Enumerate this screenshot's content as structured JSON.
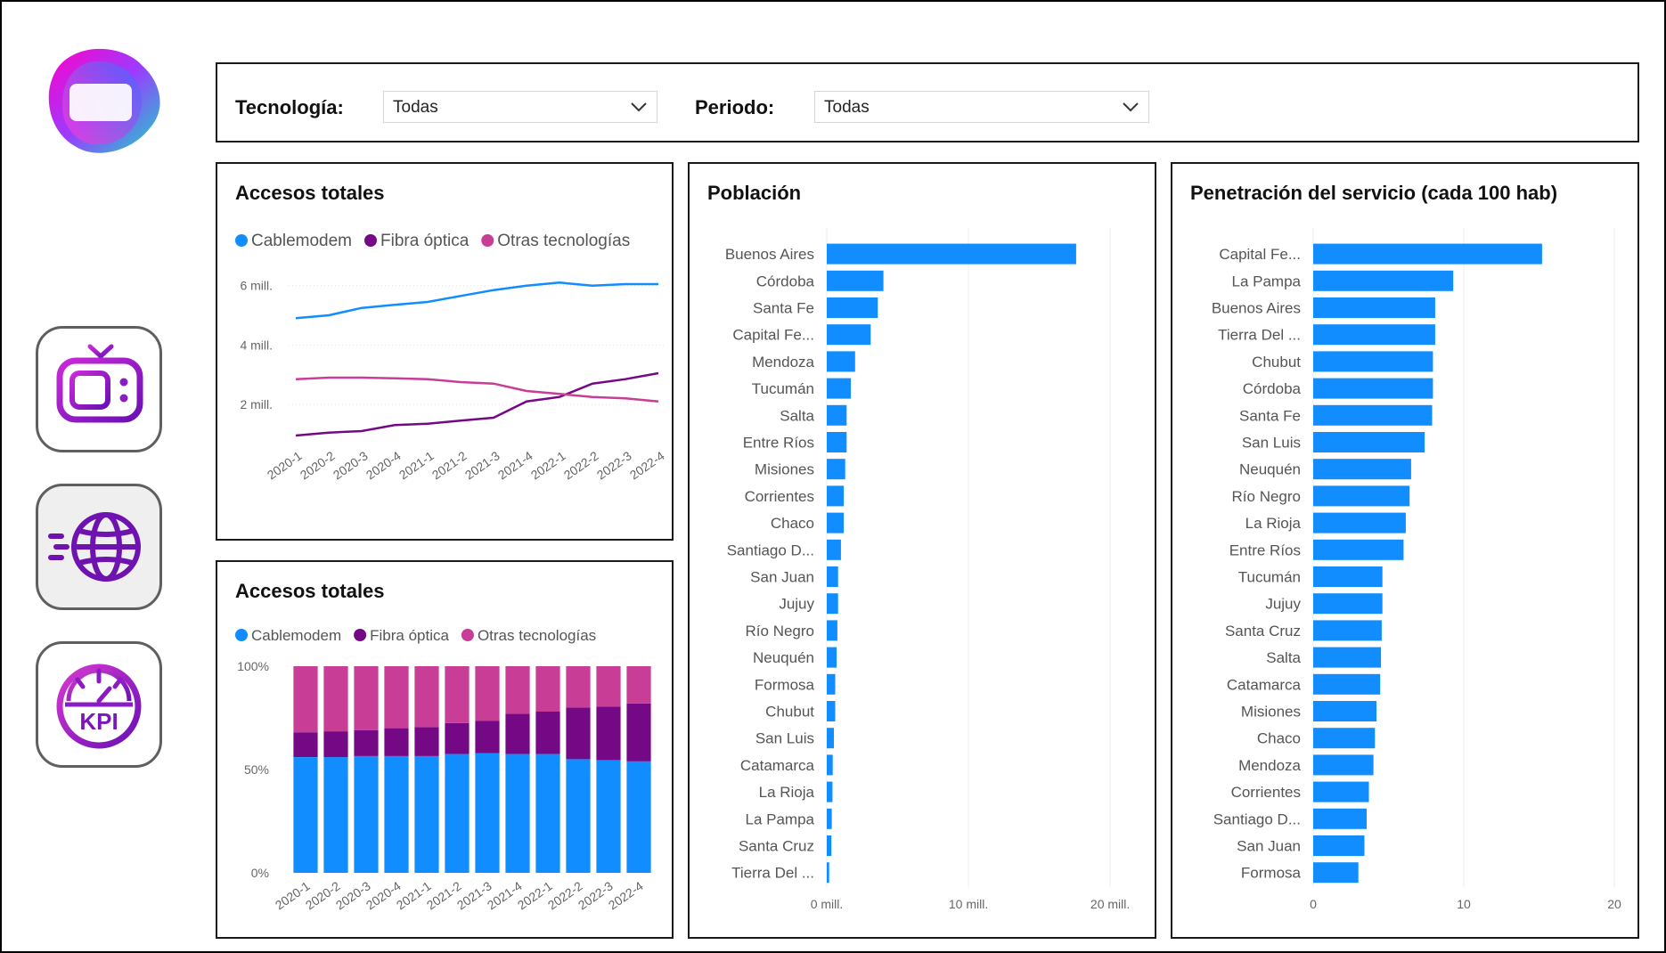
{
  "filters": {
    "tecnologia": {
      "label": "Tecnología:",
      "value": "Todas"
    },
    "periodo": {
      "label": "Periodo:",
      "value": "Todas"
    }
  },
  "nav": [
    {
      "name": "tv-icon"
    },
    {
      "name": "globe-icon"
    },
    {
      "name": "kpi-icon",
      "text": "KPI"
    }
  ],
  "colors": {
    "cablemodem": "#118DFF",
    "fibra": "#750985",
    "otras": "#C83D95",
    "bar": "#118DFF"
  },
  "line_chart": {
    "title": "Accesos totales",
    "chart_data": {
      "type": "line",
      "title": "Accesos totales",
      "x": [
        "2020-1",
        "2020-2",
        "2020-3",
        "2020-4",
        "2021-1",
        "2021-2",
        "2021-3",
        "2021-4",
        "2022-1",
        "2022-2",
        "2022-3",
        "2022-4"
      ],
      "y_ticks": [
        {
          "value": 2,
          "label": "2 mill."
        },
        {
          "value": 4,
          "label": "4 mill."
        },
        {
          "value": 6,
          "label": "6 mill."
        }
      ],
      "ylim": [
        0.8,
        6.8
      ],
      "legend_position": "top-left",
      "grid": true,
      "series": [
        {
          "name": "Cablemodem",
          "values": [
            4.9,
            5.0,
            5.25,
            5.35,
            5.45,
            5.65,
            5.85,
            6.0,
            6.1,
            6.0,
            6.05,
            6.05
          ]
        },
        {
          "name": "Fibra óptica",
          "values": [
            0.95,
            1.05,
            1.1,
            1.3,
            1.35,
            1.45,
            1.55,
            2.1,
            2.25,
            2.7,
            2.85,
            3.05
          ]
        },
        {
          "name": "Otras tecnologías",
          "values": [
            2.85,
            2.9,
            2.9,
            2.88,
            2.85,
            2.75,
            2.7,
            2.45,
            2.35,
            2.25,
            2.2,
            2.1
          ]
        }
      ]
    }
  },
  "stacked_chart": {
    "title": "Accesos totales",
    "chart_data": {
      "type": "bar",
      "stacked": "percent",
      "title": "Accesos totales",
      "categories": [
        "2020-1",
        "2020-2",
        "2020-3",
        "2020-4",
        "2021-1",
        "2021-2",
        "2021-3",
        "2021-4",
        "2022-1",
        "2022-2",
        "2022-3",
        "2022-4"
      ],
      "y_ticks": [
        {
          "value": 0,
          "label": "0%"
        },
        {
          "value": 50,
          "label": "50%"
        },
        {
          "value": 100,
          "label": "100%"
        }
      ],
      "ylim": [
        0,
        100
      ],
      "legend_position": "top-left",
      "series": [
        {
          "name": "Cablemodem",
          "values": [
            56,
            56,
            56.5,
            56.5,
            56.5,
            57.5,
            58,
            57.5,
            57.5,
            55,
            54.5,
            54
          ]
        },
        {
          "name": "Fibra óptica",
          "values": [
            12,
            12.5,
            12.5,
            13.5,
            14,
            15,
            15.5,
            19.5,
            20.5,
            25,
            26,
            28
          ]
        },
        {
          "name": "Otras tecnologías",
          "values": [
            32,
            31.5,
            31,
            30,
            29.5,
            27.5,
            26.5,
            23,
            22,
            20,
            19.5,
            18
          ]
        }
      ]
    }
  },
  "poblacion_chart": {
    "title": "Población",
    "chart_data": {
      "type": "bar",
      "orientation": "horizontal",
      "title": "Población",
      "categories": [
        "Buenos Aires",
        "Córdoba",
        "Santa Fe",
        "Capital Fe...",
        "Mendoza",
        "Tucumán",
        "Salta",
        "Entre Ríos",
        "Misiones",
        "Corrientes",
        "Chaco",
        "Santiago D...",
        "San Juan",
        "Jujuy",
        "Río Negro",
        "Neuquén",
        "Formosa",
        "Chubut",
        "San Luis",
        "Catamarca",
        "La Rioja",
        "La Pampa",
        "Santa Cruz",
        "Tierra Del ..."
      ],
      "values": [
        17.6,
        4.0,
        3.6,
        3.1,
        2.0,
        1.7,
        1.4,
        1.4,
        1.3,
        1.2,
        1.2,
        1.0,
        0.8,
        0.8,
        0.75,
        0.7,
        0.6,
        0.6,
        0.5,
        0.42,
        0.4,
        0.35,
        0.33,
        0.17
      ],
      "xlim": [
        0,
        21
      ],
      "x_ticks": [
        {
          "value": 0,
          "label": "0 mill."
        },
        {
          "value": 10,
          "label": "10 mill."
        },
        {
          "value": 20,
          "label": "20 mill."
        }
      ],
      "grid": true
    }
  },
  "penetracion_chart": {
    "title": "Penetración del servicio (cada 100 hab)",
    "chart_data": {
      "type": "bar",
      "orientation": "horizontal",
      "title": "Penetración del servicio (cada 100 hab)",
      "categories": [
        "Capital Fe...",
        "La Pampa",
        "Buenos Aires",
        "Tierra Del ...",
        "Chubut",
        "Córdoba",
        "Santa Fe",
        "San Luis",
        "Neuquén",
        "Río Negro",
        "La Rioja",
        "Entre Ríos",
        "Tucumán",
        "Jujuy",
        "Santa Cruz",
        "Salta",
        "Catamarca",
        "Misiones",
        "Chaco",
        "Mendoza",
        "Corrientes",
        "Santiago D...",
        "San Juan",
        "Formosa"
      ],
      "values": [
        15.2,
        9.3,
        8.1,
        8.1,
        7.95,
        7.95,
        7.9,
        7.4,
        6.5,
        6.4,
        6.15,
        6.0,
        4.6,
        4.6,
        4.55,
        4.5,
        4.45,
        4.2,
        4.1,
        4.0,
        3.7,
        3.55,
        3.4,
        3.0
      ],
      "xlim": [
        0,
        20
      ],
      "x_ticks": [
        {
          "value": 0,
          "label": "0"
        },
        {
          "value": 10,
          "label": "10"
        },
        {
          "value": 20,
          "label": "20"
        }
      ],
      "grid": true
    }
  }
}
